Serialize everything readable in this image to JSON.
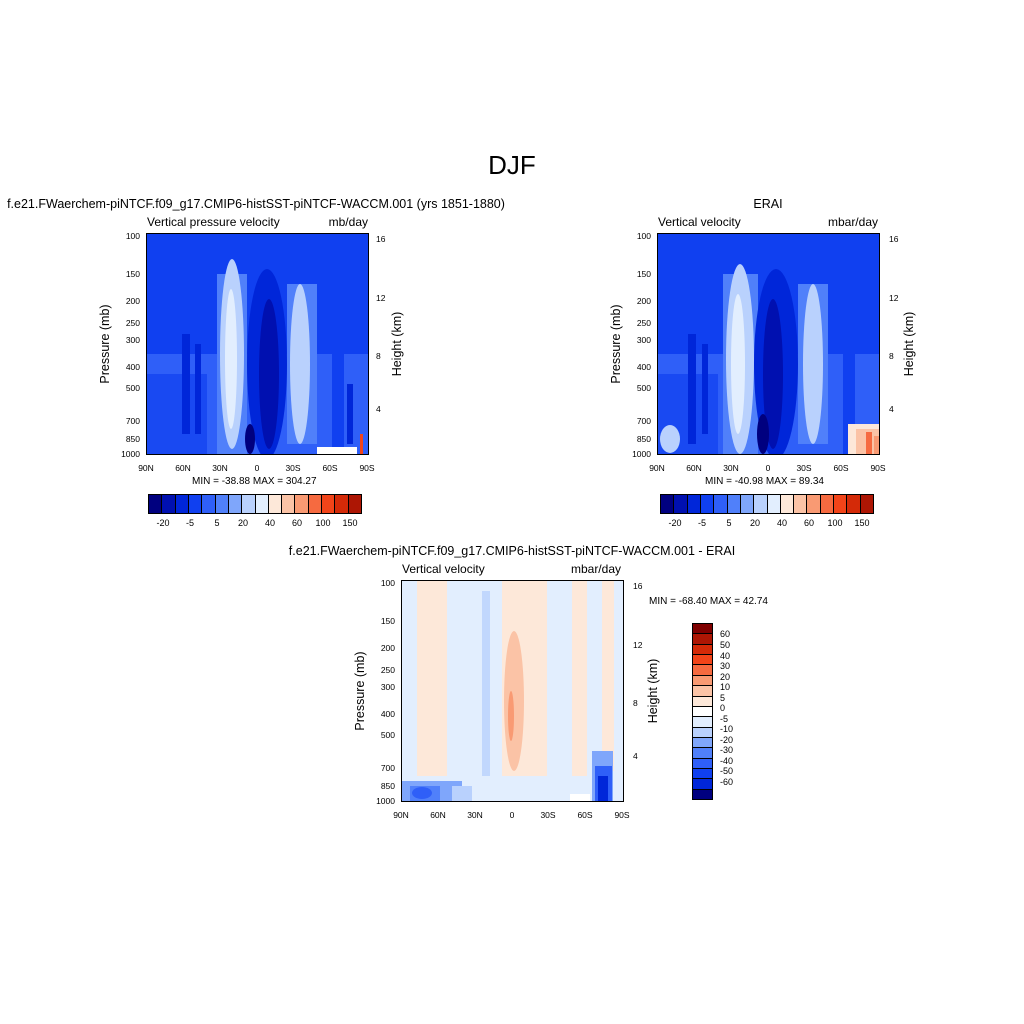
{
  "page": {
    "title": "DJF"
  },
  "chart_data": [
    {
      "type": "heatmap",
      "title": "f.e21.FWaerchem-piNTCF.f09_g17.CMIP6-histSST-piNTCF-WACCM.001 (yrs 1851-1880)",
      "left_string": "Vertical pressure velocity",
      "right_string": "mb/day",
      "ylabel": "Pressure (mb)",
      "ylabel_right": "Height (km)",
      "x_ticks": [
        "90N",
        "60N",
        "30N",
        "0",
        "30S",
        "60S",
        "90S"
      ],
      "y_ticks": [
        "100",
        "150",
        "200",
        "250",
        "300",
        "400",
        "500",
        "700",
        "850",
        "1000"
      ],
      "y_right_ticks": [
        "16",
        "12",
        "8",
        "4"
      ],
      "ylim": [
        1000,
        100
      ],
      "min_max_label": "MIN = -38.88  MAX = 304.27",
      "colorbar_labels": [
        "-20",
        "-5",
        "5",
        "20",
        "40",
        "60",
        "100",
        "150"
      ]
    },
    {
      "type": "heatmap",
      "title": "ERAI",
      "left_string": "Vertical velocity",
      "right_string": "mbar/day",
      "ylabel": "Pressure (mb)",
      "ylabel_right": "Height (km)",
      "x_ticks": [
        "90N",
        "60N",
        "30N",
        "0",
        "30S",
        "60S",
        "90S"
      ],
      "y_ticks": [
        "100",
        "150",
        "200",
        "250",
        "300",
        "400",
        "500",
        "700",
        "850",
        "1000"
      ],
      "y_right_ticks": [
        "16",
        "12",
        "8",
        "4"
      ],
      "ylim": [
        1000,
        100
      ],
      "min_max_label": "MIN = -40.98  MAX =  89.34",
      "colorbar_labels": [
        "-20",
        "-5",
        "5",
        "20",
        "40",
        "60",
        "100",
        "150"
      ]
    },
    {
      "type": "heatmap",
      "title": "f.e21.FWaerchem-piNTCF.f09_g17.CMIP6-histSST-piNTCF-WACCM.001 - ERAI",
      "left_string": "Vertical velocity",
      "right_string": "mbar/day",
      "ylabel": "Pressure (mb)",
      "ylabel_right": "Height (km)",
      "x_ticks": [
        "90N",
        "60N",
        "30N",
        "0",
        "30S",
        "60S",
        "90S"
      ],
      "y_ticks": [
        "100",
        "150",
        "200",
        "250",
        "300",
        "400",
        "500",
        "700",
        "850",
        "1000"
      ],
      "y_right_ticks": [
        "16",
        "12",
        "8",
        "4"
      ],
      "ylim": [
        1000,
        100
      ],
      "min_max_label": "MIN = -68.40  MAX =  42.74",
      "colorbar_labels": [
        "60",
        "50",
        "40",
        "30",
        "20",
        "10",
        "5",
        "0",
        "-5",
        "-10",
        "-20",
        "-30",
        "-40",
        "-50",
        "-60"
      ]
    }
  ],
  "colors": {
    "main_palette": [
      "#00007f",
      "#0010b0",
      "#0026d9",
      "#1040f0",
      "#2f5ff8",
      "#5080fa",
      "#7fa6fb",
      "#b9d1fd",
      "#e2eefe",
      "#fde8d9",
      "#fbc3a6",
      "#f99a73",
      "#f66a40",
      "#f24419",
      "#d42a08",
      "#ad1604",
      "#7f0000"
    ],
    "diff_palette": [
      "#7f0000",
      "#ad1604",
      "#d42a08",
      "#f24419",
      "#f66a40",
      "#f99a73",
      "#fbc3a6",
      "#fde8d9",
      "#ffffff",
      "#e2eefe",
      "#b9d1fd",
      "#7fa6fb",
      "#5080fa",
      "#2f5ff8",
      "#1040f0",
      "#0026d9",
      "#00007f"
    ]
  }
}
